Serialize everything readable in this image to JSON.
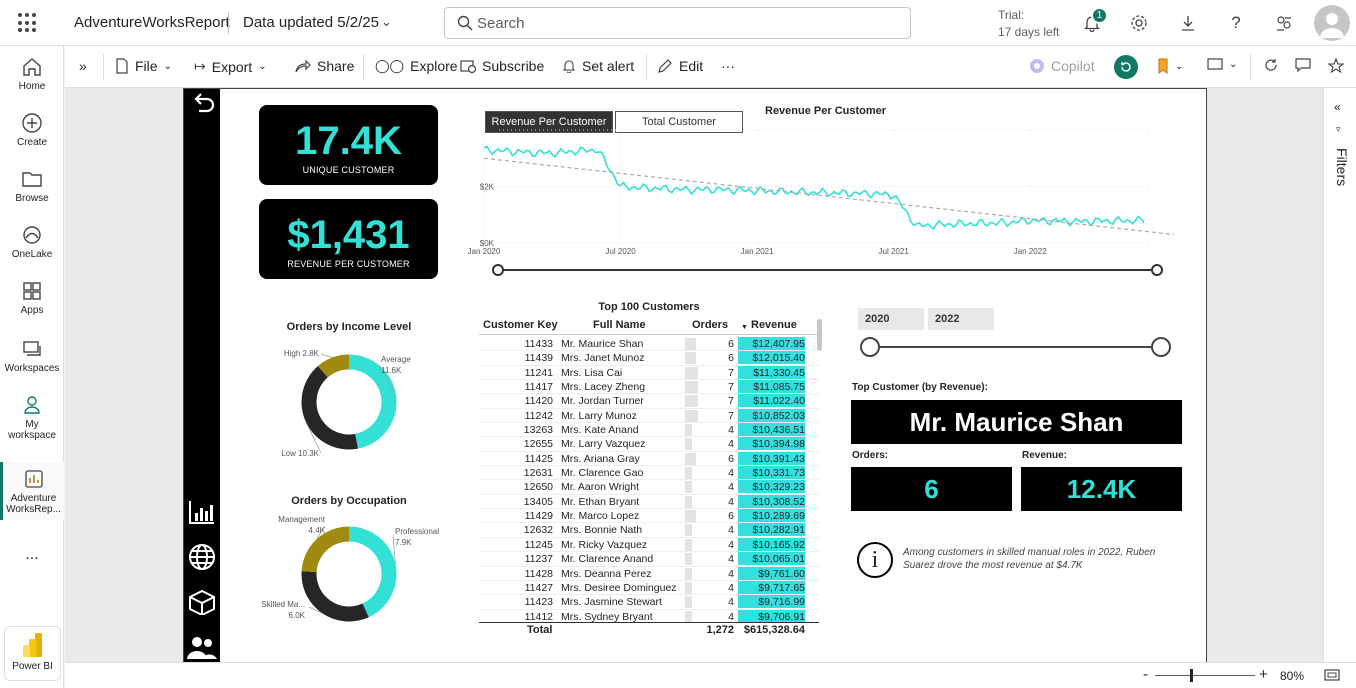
{
  "app": {
    "name": "AdventureWorksReport",
    "data_updated": "Data updated 5/2/25",
    "search_placeholder": "Search",
    "trial_label": "Trial:",
    "trial_days": "17 days left",
    "notification_count": "1"
  },
  "leftnav": {
    "home": "Home",
    "create": "Create",
    "browse": "Browse",
    "onelake": "OneLake",
    "apps": "Apps",
    "workspaces": "Workspaces",
    "my_workspace_1": "My",
    "my_workspace_2": "workspace",
    "report_1": "Adventure",
    "report_2": "WorksRep...",
    "more": "...",
    "powerbi": "Power BI"
  },
  "toolbar": {
    "file": "File",
    "export": "Export",
    "share": "Share",
    "explore": "Explore",
    "subscribe": "Subscribe",
    "set_alert": "Set alert",
    "edit": "Edit",
    "more": "···",
    "copilot": "Copilot"
  },
  "filters_label": "Filters",
  "kpis": {
    "unique_customer_value": "17.4K",
    "unique_customer_label": "UNIQUE CUSTOMER",
    "revenue_per_customer_value": "$1,431",
    "revenue_per_customer_label": "REVENUE PER CUSTOMER"
  },
  "tabs": {
    "revenue_per_customer": "Revenue Per Customer",
    "total_customer": "Total Customer"
  },
  "chart_data": [
    {
      "type": "line",
      "title": "Revenue Per Customer",
      "x_ticks": [
        "Jan 2020",
        "Jul 2020",
        "Jan 2021",
        "Jul 2021",
        "Jan 2022"
      ],
      "y_ticks": [
        "$0K",
        "$2K"
      ],
      "ylim": [
        0,
        4000
      ],
      "series": [
        {
          "x": [
            "2020-01",
            "2020-02",
            "2020-03",
            "2020-04",
            "2020-05",
            "2020-06",
            "2020-07",
            "2020-08",
            "2020-09",
            "2020-10",
            "2020-11",
            "2020-12",
            "2021-01",
            "2021-02",
            "2021-03",
            "2021-04",
            "2021-05",
            "2021-06",
            "2021-07",
            "2021-08",
            "2021-09",
            "2021-10",
            "2021-11",
            "2021-12",
            "2022-01",
            "2022-02",
            "2022-03",
            "2022-04",
            "2022-05",
            "2022-06"
          ],
          "values": [
            3300,
            3250,
            3200,
            3180,
            3250,
            3300,
            2000,
            1950,
            1920,
            1880,
            1900,
            1870,
            1850,
            1820,
            1800,
            1780,
            1760,
            1750,
            1700,
            600,
            650,
            680,
            700,
            720,
            800,
            780,
            760,
            780,
            790,
            800
          ]
        }
      ],
      "trendline": true,
      "grid": true
    },
    {
      "type": "pie",
      "title": "Orders by Income Level",
      "labels": [
        "Average",
        "Low",
        "High"
      ],
      "values": [
        11.6,
        10.3,
        2.8
      ],
      "value_labels": [
        "11.6K",
        "10.3K",
        "2.8K"
      ],
      "colors": [
        "#33e0d5",
        "#262626",
        "#a08a10"
      ]
    },
    {
      "type": "pie",
      "title": "Orders by Occupation",
      "labels": [
        "Professional",
        "Skilled Ma...",
        "Management"
      ],
      "values": [
        7.9,
        6.0,
        4.4
      ],
      "value_labels": [
        "7.9K",
        "6.0K",
        "4.4K"
      ],
      "colors": [
        "#33e0d5",
        "#262626",
        "#a08a10"
      ]
    }
  ],
  "table": {
    "title": "Top 100 Customers",
    "headers": {
      "key": "Customer Key",
      "name": "Full Name",
      "orders": "Orders",
      "revenue": "Revenue"
    },
    "rows": [
      {
        "key": "11433",
        "name": "Mr. Maurice Shan",
        "orders": "6",
        "revenue": "$12,407.95"
      },
      {
        "key": "11439",
        "name": "Mrs. Janet Munoz",
        "orders": "6",
        "revenue": "$12,015.40"
      },
      {
        "key": "11241",
        "name": "Mrs. Lisa Cai",
        "orders": "7",
        "revenue": "$11,330.45"
      },
      {
        "key": "11417",
        "name": "Mrs. Lacey Zheng",
        "orders": "7",
        "revenue": "$11,085.75"
      },
      {
        "key": "11420",
        "name": "Mr. Jordan Turner",
        "orders": "7",
        "revenue": "$11,022.40"
      },
      {
        "key": "11242",
        "name": "Mr. Larry Munoz",
        "orders": "7",
        "revenue": "$10,852.03"
      },
      {
        "key": "13263",
        "name": "Mrs. Kate Anand",
        "orders": "4",
        "revenue": "$10,436.51"
      },
      {
        "key": "12655",
        "name": "Mr. Larry Vazquez",
        "orders": "4",
        "revenue": "$10,394.98"
      },
      {
        "key": "11425",
        "name": "Mrs. Ariana Gray",
        "orders": "6",
        "revenue": "$10,391.43"
      },
      {
        "key": "12631",
        "name": "Mr. Clarence Gao",
        "orders": "4",
        "revenue": "$10,331.73"
      },
      {
        "key": "12650",
        "name": "Mr. Aaron Wright",
        "orders": "4",
        "revenue": "$10,329.23"
      },
      {
        "key": "13405",
        "name": "Mr. Ethan Bryant",
        "orders": "4",
        "revenue": "$10,308.52"
      },
      {
        "key": "11429",
        "name": "Mr. Marco Lopez",
        "orders": "6",
        "revenue": "$10,289.69"
      },
      {
        "key": "12632",
        "name": "Mrs. Bonnie Nath",
        "orders": "4",
        "revenue": "$10,282.91"
      },
      {
        "key": "11245",
        "name": "Mr. Ricky Vazquez",
        "orders": "4",
        "revenue": "$10,165.92"
      },
      {
        "key": "11237",
        "name": "Mr. Clarence Anand",
        "orders": "4",
        "revenue": "$10,065.01"
      },
      {
        "key": "11428",
        "name": "Mrs. Deanna Perez",
        "orders": "4",
        "revenue": "$9,761.60"
      },
      {
        "key": "11427",
        "name": "Mrs. Desiree Dominguez",
        "orders": "4",
        "revenue": "$9,717.65"
      },
      {
        "key": "11423",
        "name": "Mrs. Jasmine Stewart",
        "orders": "4",
        "revenue": "$9,716.99"
      },
      {
        "key": "11412",
        "name": "Mrs. Sydney Bryant",
        "orders": "4",
        "revenue": "$9,706.91"
      }
    ],
    "total_label": "Total",
    "total_orders": "1,272",
    "total_revenue": "$615,328.64"
  },
  "slicer": {
    "start_year": "2020",
    "end_year": "2022"
  },
  "top_customer": {
    "label": "Top Customer (by Revenue):",
    "name": "Mr. Maurice Shan",
    "orders_label": "Orders:",
    "orders_value": "6",
    "revenue_label": "Revenue:",
    "revenue_value": "12.4K"
  },
  "insight": "Among customers in skilled manual roles in 2022, Ruben Suarez drove the most revenue at $4.7K",
  "status": {
    "zoom_minus": "-",
    "zoom_plus": "+",
    "zoom": "80%"
  },
  "colors": {
    "accent_teal": "#33e0d5",
    "gold": "#a08a10",
    "dark": "#262626",
    "brand_green": "#117865"
  }
}
